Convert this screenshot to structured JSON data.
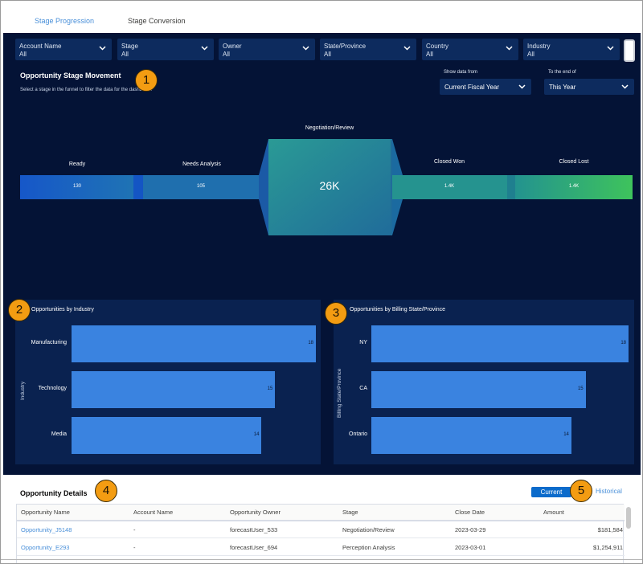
{
  "tabs": [
    "Stage Progression",
    "Stage Conversion"
  ],
  "filters": [
    {
      "label": "Account Name",
      "value": "All"
    },
    {
      "label": "Stage",
      "value": "All"
    },
    {
      "label": "Owner",
      "value": "All"
    },
    {
      "label": "State/Province",
      "value": "All"
    },
    {
      "label": "Country",
      "value": "All"
    },
    {
      "label": "Industry",
      "value": "All"
    }
  ],
  "movement": {
    "title": "Opportunity Stage Movement",
    "subtitle": "Select a stage in the funnel to filter the data for the dashboard",
    "show_label": "Show data from",
    "show_value": "Current Fiscal Year",
    "end_label": "To the end of",
    "end_value": "This Year"
  },
  "funnel": [
    {
      "label": "Ready",
      "value": "130"
    },
    {
      "label": "Needs Analysis",
      "value": "105"
    },
    {
      "label": "Negotiation/Review",
      "value": "26K"
    },
    {
      "label": "Closed Won",
      "value": "1.4K"
    },
    {
      "label": "Closed Lost",
      "value": "1.4K"
    }
  ],
  "badges": [
    "1",
    "2",
    "3",
    "4",
    "5"
  ],
  "industry_chart": {
    "title": "Opportunities by Industry",
    "ylabel": "Industry",
    "chart_data": {
      "type": "bar",
      "categories": [
        "Manufacturing",
        "Technology",
        "Media"
      ],
      "values": [
        18,
        15,
        14
      ],
      "xlim": [
        0,
        18
      ]
    }
  },
  "state_chart": {
    "title": "Opportunities by Billing State/Province",
    "ylabel": "Billing State/Province",
    "chart_data": {
      "type": "bar",
      "categories": [
        "NY",
        "CA",
        "Ontario"
      ],
      "values": [
        18,
        15,
        14
      ],
      "xlim": [
        0,
        18
      ]
    }
  },
  "details": {
    "title": "Opportunity Details",
    "current_label": "Current",
    "historical_label": "Historical",
    "columns": [
      "Opportunity Name",
      "Account Name",
      "Opportunity Owner",
      "Stage",
      "Close Date",
      "Amount"
    ],
    "rows": [
      [
        "Opportunity_J5148",
        "-",
        "forecastUser_533",
        "Negotiation/Review",
        "2023-03-29",
        "$181,584"
      ],
      [
        "Opportunity_E293",
        "-",
        "forecastUser_694",
        "Perception Analysis",
        "2023-03-01",
        "$1,254,911"
      ]
    ]
  },
  "colors": {
    "dashboard_bg": "#041336",
    "panel_bg": "#0a2250",
    "bar": "#3a83e0",
    "badge": "#f39c12",
    "accent": "#0b6bcb"
  }
}
